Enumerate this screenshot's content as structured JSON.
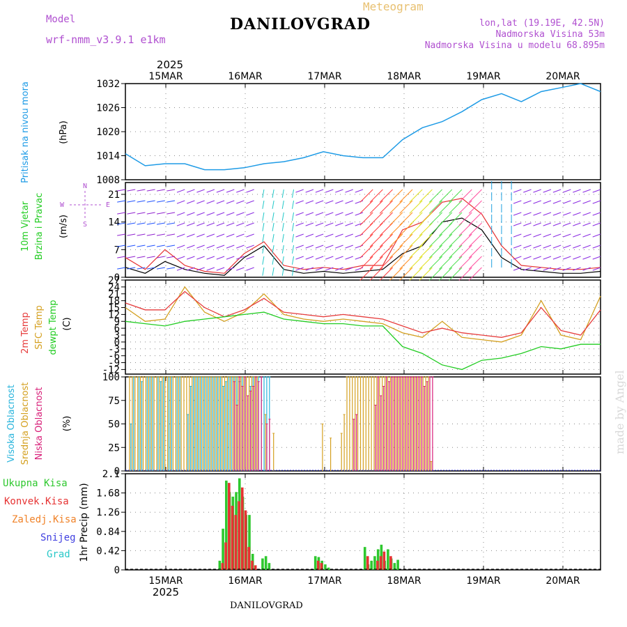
{
  "header": {
    "model_label": "Model",
    "model_name": "wrf-nmm_v3.9.1  e1km",
    "meteogram_label": "Meteogram",
    "station": "DANILOVGRAD",
    "lonlat": "lon,lat (19.19E, 42.5N)",
    "elevation": "Nadmorska Visina 53m",
    "model_elevation": "Nadmorska Visina u modelu 68.895m",
    "footer_station": "DANILOVGRAD",
    "watermark": "made by Angel"
  },
  "colors": {
    "pressure": "#1e9be6",
    "wind_speed": "#000000",
    "gust": "#e63232",
    "temp2m": "#e63c3c",
    "sfc": "#d4a020",
    "dew": "#22cc22",
    "cloud_high": "#28b4dc",
    "cloud_mid": "#d4a020",
    "cloud_low": "#d81e78",
    "rain_total": "#2ec82e",
    "rain_conv": "#e63232",
    "rain_nonconv": "#f08228",
    "snow": "#4040e0",
    "graupel": "#28c8c8",
    "model_text": "#b050d0",
    "meteogram_text": "#e8c070"
  },
  "chart_data": [
    {
      "type": "line",
      "panel": "pressure",
      "ylabel_left": "Pritisak na nivou mora",
      "ylabel_unit": "(hPa)",
      "ylim": [
        1008,
        1032
      ],
      "yticks": [
        "1032",
        "1026",
        "1020",
        "1014",
        "1008"
      ],
      "x_top_year": "2025",
      "x_dates": [
        "15MAR",
        "16MAR",
        "17MAR",
        "18MAR",
        "19MAR",
        "20MAR"
      ],
      "series": [
        {
          "x": [
            0,
            6,
            12,
            18,
            24,
            30,
            36,
            42,
            48,
            54,
            60,
            66,
            72,
            78,
            84,
            90,
            96,
            102,
            108,
            114,
            120,
            126,
            132,
            138,
            144
          ],
          "values": [
            1014.5,
            1011.5,
            1012,
            1012,
            1010.5,
            1010.5,
            1011,
            1012,
            1012.5,
            1013.5,
            1015,
            1014,
            1013.5,
            1013.5,
            1018,
            1021,
            1022.5,
            1025,
            1028,
            1029.5,
            1027.5,
            1030,
            1031,
            1032,
            1030
          ]
        }
      ]
    },
    {
      "type": "line",
      "panel": "wind",
      "ylabel_left": [
        "10m Vjetar",
        "Brzina i Pravac"
      ],
      "ylabel_unit": "(m/s)",
      "compass": [
        "N",
        "S",
        "W",
        "E"
      ],
      "ylim": [
        0,
        24
      ],
      "yticks": [
        "21",
        "14",
        "7",
        "0"
      ],
      "series": [
        {
          "name": "speed",
          "x": [
            0,
            6,
            12,
            18,
            24,
            30,
            36,
            42,
            48,
            54,
            60,
            66,
            72,
            78,
            84,
            90,
            96,
            102,
            108,
            114,
            120,
            126,
            132,
            138,
            144
          ],
          "values": [
            2.5,
            1,
            4,
            2,
            1,
            0.5,
            5,
            8,
            2,
            1,
            1.5,
            1,
            1.5,
            2,
            6,
            8,
            14,
            15,
            12,
            5,
            2,
            1.5,
            1,
            1,
            1.5
          ]
        },
        {
          "name": "gust",
          "x": [
            0,
            6,
            12,
            18,
            24,
            30,
            36,
            42,
            48,
            54,
            60,
            66,
            72,
            78,
            84,
            90,
            96,
            102,
            108,
            114,
            120,
            126,
            132,
            138,
            144
          ],
          "values": [
            5,
            2,
            7,
            3,
            1.5,
            1,
            6,
            9,
            3,
            2,
            2.5,
            2,
            3,
            3,
            12,
            14,
            19,
            20,
            16,
            8,
            3,
            2.5,
            2,
            2,
            2.5
          ]
        }
      ]
    },
    {
      "type": "line",
      "panel": "temperature",
      "ylabel_left": [
        "2m Temp",
        "SFC Temp",
        "dewpt Temp"
      ],
      "ylabel_unit": "(C)",
      "ylim": [
        -14,
        27
      ],
      "yticks": [
        "27",
        "24",
        "21",
        "18",
        "15",
        "12",
        "9",
        "6",
        "3",
        "0",
        "-3",
        "-6",
        "-9",
        "-12"
      ],
      "series": [
        {
          "name": "2m Temp",
          "x": [
            0,
            6,
            12,
            18,
            24,
            30,
            36,
            42,
            48,
            54,
            60,
            66,
            72,
            78,
            84,
            90,
            96,
            102,
            108,
            114,
            120,
            126,
            132,
            138,
            144
          ],
          "values": [
            17,
            14,
            14,
            22,
            15,
            11,
            14,
            19,
            13,
            12,
            11,
            12,
            11,
            10,
            7,
            4,
            6,
            4,
            3,
            2,
            4,
            15,
            5,
            3,
            14
          ]
        },
        {
          "name": "SFC Temp",
          "x": [
            0,
            6,
            12,
            18,
            24,
            30,
            36,
            42,
            48,
            54,
            60,
            66,
            72,
            78,
            84,
            90,
            96,
            102,
            108,
            114,
            120,
            126,
            132,
            138,
            144
          ],
          "values": [
            15,
            9,
            10,
            24,
            13,
            9,
            13,
            21,
            12,
            10,
            9,
            10,
            9,
            8,
            4,
            2,
            9,
            2,
            1,
            0,
            3,
            18,
            3,
            1,
            20
          ]
        },
        {
          "name": "dewpt Temp",
          "x": [
            0,
            6,
            12,
            18,
            24,
            30,
            36,
            42,
            48,
            54,
            60,
            66,
            72,
            78,
            84,
            90,
            96,
            102,
            108,
            114,
            120,
            126,
            132,
            138,
            144
          ],
          "values": [
            9,
            8,
            7,
            9,
            10,
            11,
            12,
            13,
            10,
            9,
            8,
            8,
            7,
            7,
            -2,
            -5,
            -10,
            -12,
            -8,
            -7,
            -5,
            -2,
            -3,
            -1,
            -1
          ]
        }
      ]
    },
    {
      "type": "bar",
      "panel": "clouds",
      "ylabel_left": [
        "Visoka Oblacnost",
        "Srednja Oblacnost",
        "Niska Oblacnost"
      ],
      "ylabel_unit": "(%)",
      "ylim": [
        0,
        100
      ],
      "yticks": [
        "100",
        "75",
        "50",
        "25",
        "0"
      ],
      "series": [
        {
          "name": "Visoka Oblacnost",
          "start": 0,
          "step": 1,
          "values": [
            0,
            50,
            100,
            0,
            100,
            95,
            0,
            100,
            100,
            100,
            0,
            100,
            95,
            100,
            0,
            100,
            100,
            0,
            100,
            100,
            0,
            0,
            60,
            90,
            100,
            100,
            100,
            100,
            100,
            100,
            100,
            100,
            100,
            100,
            100,
            90,
            95,
            100,
            100,
            100,
            100,
            95,
            100,
            100,
            0,
            90,
            100,
            100,
            100,
            100,
            100,
            100,
            100
          ]
        },
        {
          "name": "Srednja Oblacnost",
          "start": 0,
          "step": 1,
          "values": [
            100,
            100,
            100,
            100,
            100,
            100,
            100,
            100,
            100,
            100,
            100,
            100,
            100,
            100,
            100,
            100,
            100,
            100,
            100,
            100,
            100,
            100,
            100,
            100,
            100,
            100,
            100,
            100,
            100,
            100,
            100,
            100,
            100,
            100,
            100,
            100,
            100,
            100,
            100,
            100,
            100,
            100,
            100,
            100,
            100,
            100,
            100,
            100,
            0,
            0,
            60,
            0,
            0,
            40,
            0,
            0,
            0,
            0,
            0,
            0,
            0,
            0,
            0,
            0,
            0,
            0,
            0,
            0,
            0,
            0,
            0,
            50,
            0,
            0,
            35,
            0,
            0,
            0,
            40,
            60,
            100,
            100,
            100,
            100,
            100,
            100,
            100,
            100,
            100,
            100,
            100,
            100,
            100,
            100,
            100,
            100,
            100,
            100,
            100,
            100,
            100,
            100,
            100,
            100,
            100,
            100,
            100,
            100,
            100,
            100,
            100,
            10
          ]
        },
        {
          "name": "Niska Oblacnost",
          "start": 0,
          "step": 1,
          "values": [
            0,
            0,
            0,
            0,
            0,
            0,
            0,
            0,
            0,
            0,
            0,
            0,
            0,
            0,
            0,
            0,
            0,
            0,
            0,
            0,
            0,
            0,
            0,
            0,
            0,
            0,
            0,
            0,
            0,
            0,
            0,
            0,
            0,
            0,
            0,
            0,
            0,
            0,
            95,
            70,
            100,
            90,
            100,
            80,
            85,
            90,
            100,
            95,
            100,
            0,
            50,
            55,
            0,
            0,
            0,
            0,
            0,
            0,
            0,
            0,
            0,
            0,
            0,
            0,
            0,
            0,
            0,
            0,
            0,
            0,
            0,
            0,
            0,
            0,
            0,
            0,
            0,
            0,
            0,
            0,
            0,
            0,
            55,
            60,
            0,
            0,
            0,
            0,
            0,
            0,
            70,
            100,
            80,
            90,
            100,
            95,
            100,
            100,
            100,
            100,
            100,
            100,
            100,
            100,
            100,
            100,
            100,
            100,
            90,
            95,
            100,
            100
          ]
        }
      ]
    },
    {
      "type": "bar",
      "panel": "precip",
      "ylabel_left": [
        "Ukupna Kisa",
        "Konvek.Kisa",
        "Zaledj.Kisa",
        "Snijeg",
        "Grad"
      ],
      "ylabel_unit": "1hr Precip (mm)",
      "ylim": [
        0,
        2.1
      ],
      "yticks": [
        "2.1",
        "1.68",
        "1.26",
        "0.84",
        "0.42",
        "0"
      ],
      "x_bottom_year": "2025",
      "series": [
        {
          "name": "Ukupna Kisa",
          "x": [
            29,
            30,
            31,
            32,
            33,
            34,
            35,
            36,
            37,
            38,
            39,
            42,
            43,
            44,
            58,
            59,
            60,
            61,
            62,
            73,
            74,
            75,
            76,
            77,
            78,
            79,
            80,
            81,
            82,
            83
          ],
          "values": [
            0.2,
            0.9,
            1.95,
            1.7,
            1.6,
            1.7,
            2.0,
            1.6,
            1.2,
            1.2,
            0.35,
            0.25,
            0.3,
            0.15,
            0.3,
            0.28,
            0.2,
            0.12,
            0.05,
            0.5,
            0.12,
            0.2,
            0.3,
            0.45,
            0.55,
            0.2,
            0.45,
            0.25,
            0.15,
            0.22
          ]
        },
        {
          "name": "Konvek.Kisa",
          "x": [
            29,
            30,
            31,
            32,
            33,
            34,
            35,
            36,
            37,
            38,
            39,
            58,
            59,
            73,
            76,
            77,
            78,
            80
          ],
          "values": [
            0.15,
            0.6,
            1.9,
            1.4,
            1.2,
            1.5,
            1.8,
            1.3,
            0.5,
            0.2,
            0.1,
            0.2,
            0.15,
            0.3,
            0.2,
            0.3,
            0.4,
            0.3
          ]
        }
      ]
    }
  ]
}
